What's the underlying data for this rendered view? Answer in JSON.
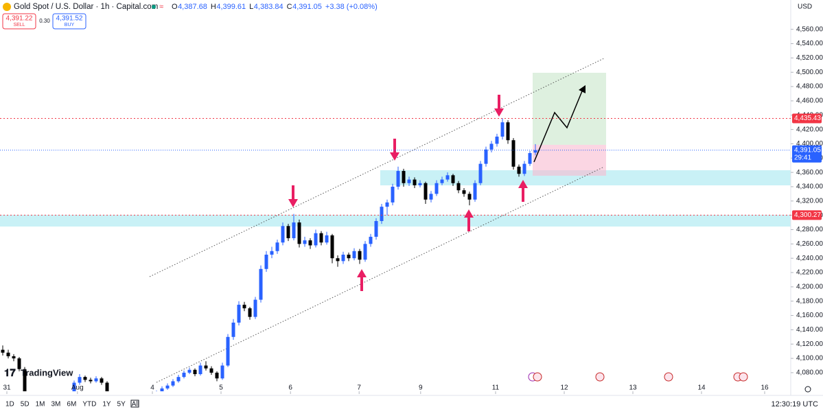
{
  "header": {
    "symbol": "Gold Spot / U.S. Dollar · 1h · Capital.com",
    "open_label": "O",
    "open": "4,387.68",
    "high_label": "H",
    "high": "4,399.61",
    "low_label": "L",
    "low": "4,383.84",
    "close_label": "C",
    "close": "4,391.05",
    "change": "+3.38 (+0.08%)"
  },
  "trade": {
    "sell_price": "4,391.22",
    "sell": "SELL",
    "spread": "0.30",
    "buy_price": "4,391.52",
    "buy": "BUY"
  },
  "currency": "USD",
  "logo": "TradingView",
  "ranges": [
    "1D",
    "5D",
    "1M",
    "3M",
    "6M",
    "YTD",
    "1Y",
    "5Y",
    "All"
  ],
  "clock": "12:30:19 UTC",
  "chart_data": {
    "type": "candlestick",
    "up_color": "#2962ff",
    "down_color": "#000000",
    "ohlc": [
      [
        4112,
        4118,
        4104,
        4108
      ],
      [
        4108,
        4112,
        4100,
        4103
      ],
      [
        4103,
        4106,
        4096,
        4100
      ],
      [
        4100,
        4102,
        4082,
        4085
      ],
      [
        4085,
        4088,
        4046,
        4050
      ],
      [
        4050,
        4053,
        4041,
        4044
      ],
      [
        4044,
        4047,
        4037,
        4040
      ],
      [
        4040,
        4043,
        4035,
        4038
      ],
      [
        4038,
        4045,
        4036,
        4042
      ],
      [
        4042,
        4049,
        4040,
        4046
      ],
      [
        4046,
        4048,
        4038,
        4041
      ],
      [
        4041,
        4043,
        4036,
        4039
      ],
      [
        4039,
        4051,
        4037,
        4048
      ],
      [
        4048,
        4069,
        4046,
        4066
      ],
      [
        4066,
        4078,
        4063,
        4074
      ],
      [
        4074,
        4076,
        4067,
        4070
      ],
      [
        4070,
        4073,
        4065,
        4068
      ],
      [
        4068,
        4075,
        4066,
        4072
      ],
      [
        4072,
        4074,
        4063,
        4066
      ],
      [
        4066,
        4068,
        4047,
        4050
      ],
      [
        4050,
        4052,
        4039,
        4042
      ],
      [
        4042,
        4044,
        4035,
        4038
      ],
      [
        4038,
        4040,
        4032,
        4035
      ],
      [
        4035,
        4042,
        4033,
        4040
      ],
      [
        4040,
        4047,
        4038,
        4044
      ],
      [
        4044,
        4046,
        4034,
        4037
      ],
      [
        4037,
        4043,
        4035,
        4041
      ],
      [
        4041,
        4048,
        4039,
        4046
      ],
      [
        4046,
        4055,
        4044,
        4052
      ],
      [
        4052,
        4061,
        4050,
        4058
      ],
      [
        4058,
        4065,
        4056,
        4062
      ],
      [
        4062,
        4071,
        4060,
        4068
      ],
      [
        4068,
        4077,
        4066,
        4074
      ],
      [
        4074,
        4083,
        4072,
        4080
      ],
      [
        4080,
        4087,
        4078,
        4084
      ],
      [
        4084,
        4086,
        4075,
        4078
      ],
      [
        4078,
        4094,
        4076,
        4090
      ],
      [
        4090,
        4096,
        4083,
        4086
      ],
      [
        4086,
        4089,
        4077,
        4080
      ],
      [
        4080,
        4082,
        4068,
        4072
      ],
      [
        4072,
        4094,
        4070,
        4090
      ],
      [
        4090,
        4134,
        4088,
        4130
      ],
      [
        4130,
        4155,
        4126,
        4150
      ],
      [
        4150,
        4180,
        4146,
        4175
      ],
      [
        4175,
        4179,
        4166,
        4170
      ],
      [
        4170,
        4172,
        4154,
        4158
      ],
      [
        4158,
        4186,
        4155,
        4182
      ],
      [
        4182,
        4230,
        4178,
        4225
      ],
      [
        4225,
        4250,
        4221,
        4245
      ],
      [
        4245,
        4256,
        4240,
        4250
      ],
      [
        4250,
        4266,
        4246,
        4262
      ],
      [
        4262,
        4290,
        4258,
        4285
      ],
      [
        4285,
        4288,
        4264,
        4268
      ],
      [
        4268,
        4302,
        4265,
        4290
      ],
      [
        4290,
        4294,
        4255,
        4260
      ],
      [
        4260,
        4270,
        4256,
        4265
      ],
      [
        4265,
        4268,
        4253,
        4258
      ],
      [
        4258,
        4280,
        4255,
        4275
      ],
      [
        4275,
        4278,
        4258,
        4262
      ],
      [
        4262,
        4277,
        4259,
        4272
      ],
      [
        4272,
        4274,
        4233,
        4240
      ],
      [
        4240,
        4244,
        4228,
        4236
      ],
      [
        4236,
        4249,
        4232,
        4245
      ],
      [
        4245,
        4248,
        4236,
        4240
      ],
      [
        4240,
        4254,
        4237,
        4250
      ],
      [
        4250,
        4253,
        4232,
        4238
      ],
      [
        4238,
        4264,
        4235,
        4260
      ],
      [
        4260,
        4274,
        4256,
        4270
      ],
      [
        4270,
        4296,
        4266,
        4292
      ],
      [
        4292,
        4316,
        4288,
        4312
      ],
      [
        4312,
        4322,
        4300,
        4318
      ],
      [
        4318,
        4344,
        4314,
        4340
      ],
      [
        4340,
        4368,
        4336,
        4362
      ],
      [
        4362,
        4365,
        4340,
        4345
      ],
      [
        4345,
        4354,
        4341,
        4350
      ],
      [
        4350,
        4353,
        4338,
        4342
      ],
      [
        4342,
        4349,
        4339,
        4345
      ],
      [
        4345,
        4347,
        4316,
        4322
      ],
      [
        4322,
        4334,
        4318,
        4330
      ],
      [
        4330,
        4349,
        4327,
        4345
      ],
      [
        4345,
        4354,
        4342,
        4350
      ],
      [
        4350,
        4360,
        4347,
        4356
      ],
      [
        4356,
        4358,
        4341,
        4345
      ],
      [
        4345,
        4348,
        4331,
        4335
      ],
      [
        4335,
        4338,
        4326,
        4330
      ],
      [
        4330,
        4333,
        4314,
        4322
      ],
      [
        4322,
        4349,
        4319,
        4345
      ],
      [
        4345,
        4376,
        4342,
        4372
      ],
      [
        4372,
        4396,
        4368,
        4392
      ],
      [
        4392,
        4404,
        4388,
        4400
      ],
      [
        4400,
        4414,
        4396,
        4410
      ],
      [
        4410,
        4436,
        4406,
        4430
      ],
      [
        4430,
        4433,
        4400,
        4405
      ],
      [
        4405,
        4408,
        4364,
        4368
      ],
      [
        4368,
        4371,
        4354,
        4358
      ],
      [
        4358,
        4376,
        4355,
        4372
      ],
      [
        4372,
        4390,
        4369,
        4387
      ],
      [
        4387.68,
        4399.61,
        4383.84,
        4391.05
      ]
    ],
    "xlim": [
      -0.5,
      143.25
    ],
    "xticks": [
      {
        "value": 0.75,
        "label": "31"
      },
      {
        "value": 13.6,
        "label": "Aug"
      },
      {
        "value": 27.25,
        "label": "4"
      },
      {
        "value": 39.75,
        "label": "5"
      },
      {
        "value": 52.4,
        "label": "6"
      },
      {
        "value": 64.9,
        "label": "7"
      },
      {
        "value": 76.1,
        "label": "9"
      },
      {
        "value": 89.75,
        "label": "11"
      },
      {
        "value": 102.25,
        "label": "12"
      },
      {
        "value": 114.75,
        "label": "13"
      },
      {
        "value": 127.25,
        "label": "14"
      },
      {
        "value": 138.75,
        "label": "16"
      }
    ],
    "ylim": [
      4054,
      4601
    ],
    "yticks": [
      {
        "value": 4080,
        "label": "4,080.00"
      },
      {
        "value": 4100,
        "label": "4,100.00"
      },
      {
        "value": 4120,
        "label": "4,120.00"
      },
      {
        "value": 4140,
        "label": "4,140.00"
      },
      {
        "value": 4160,
        "label": "4,160.00"
      },
      {
        "value": 4180,
        "label": "4,180.00"
      },
      {
        "value": 4200,
        "label": "4,200.00"
      },
      {
        "value": 4220,
        "label": "4,220.00"
      },
      {
        "value": 4240,
        "label": "4,240.00"
      },
      {
        "value": 4260,
        "label": "4,260.00"
      },
      {
        "value": 4280,
        "label": "4,280.00"
      },
      {
        "value": 4300,
        "label": "4,300.00"
      },
      {
        "value": 4320,
        "label": "4,320.00"
      },
      {
        "value": 4340,
        "label": "4,340.00"
      },
      {
        "value": 4360,
        "label": "4,360.00"
      },
      {
        "value": 4380,
        "label": "4,380.00"
      },
      {
        "value": 4400,
        "label": "4,400.00"
      },
      {
        "value": 4420,
        "label": "4,420.00"
      },
      {
        "value": 4440,
        "label": "4,440.00"
      },
      {
        "value": 4460,
        "label": "4,460.00"
      },
      {
        "value": 4480,
        "label": "4,480.00"
      },
      {
        "value": 4500,
        "label": "4,500.00"
      },
      {
        "value": 4520,
        "label": "4,520.00"
      },
      {
        "value": 4540,
        "label": "4,540.00"
      },
      {
        "value": 4560,
        "label": "4,560.00"
      }
    ],
    "last_price": {
      "value": 4391.05,
      "label": "4,391.05",
      "countdown": "29:41",
      "color": "#2962ff"
    },
    "levels": [
      {
        "value": 4435.43,
        "label": "4,435.43",
        "color": "#f23645"
      },
      {
        "value": 4300.27,
        "label": "4,300.27",
        "color": "#f23645"
      }
    ]
  }
}
